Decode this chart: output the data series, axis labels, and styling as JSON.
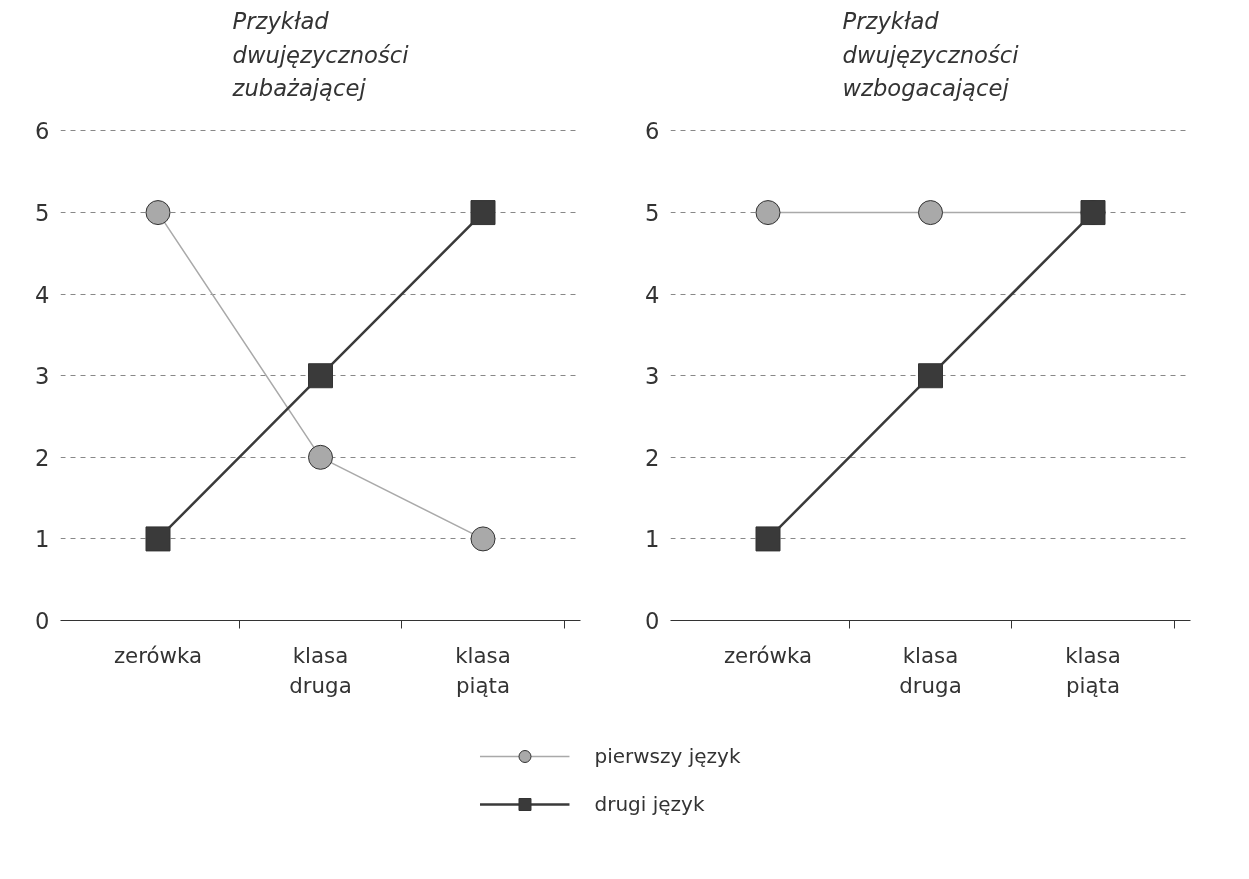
{
  "chart_data": [
    {
      "type": "line",
      "title": "Przykład\ndwujęzyczności\nzubażającej",
      "categories": [
        "zerówka",
        "klasa\ndruga",
        "klasa\npiąta"
      ],
      "ylim": [
        0,
        6
      ],
      "yticks": [
        0,
        1,
        2,
        3,
        4,
        5,
        6
      ],
      "grid": "y",
      "legend": "bottom",
      "series": [
        {
          "name": "pierwszy język",
          "color": "#a9a9a9",
          "marker": "circle",
          "values": [
            5,
            2,
            1
          ]
        },
        {
          "name": "drugi język",
          "color": "#3a3a3a",
          "marker": "square",
          "values": [
            1,
            3,
            5
          ]
        }
      ]
    },
    {
      "type": "line",
      "title": "Przykład\ndwujęzyczności\nwzbogacającej",
      "categories": [
        "zerówka",
        "klasa\ndruga",
        "klasa\npiąta"
      ],
      "ylim": [
        0,
        6
      ],
      "yticks": [
        0,
        1,
        2,
        3,
        4,
        5,
        6
      ],
      "grid": "y",
      "series": [
        {
          "color": "#a9a9a9",
          "marker": "circle",
          "values": [
            5,
            5,
            5
          ]
        },
        {
          "color": "#3a3a3a",
          "marker": "square",
          "values": [
            1,
            3,
            5
          ]
        }
      ]
    }
  ]
}
